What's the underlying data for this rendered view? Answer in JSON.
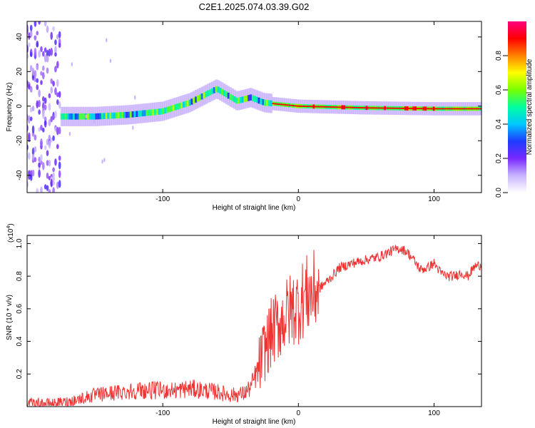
{
  "title": "C2E1.2025.074.03.39.G02",
  "chart_data": [
    {
      "type": "heatmap",
      "name": "spectrogram",
      "xlabel": "Height of straight line (km)",
      "ylabel": "Frequency (Hz)",
      "xlim": [
        -200,
        135
      ],
      "ylim": [
        -50,
        49
      ],
      "xticks": [
        -100,
        0,
        100
      ],
      "yticks": [
        -40,
        -20,
        0,
        20,
        40
      ],
      "colorbar": {
        "label": "Normalized spectral amplitude",
        "range": [
          0,
          1
        ],
        "ticks": [
          "0.0",
          "0.2",
          "0.4",
          "0.6",
          "0.8"
        ],
        "colors": [
          "#ffffff",
          "#c8b4ff",
          "#7828ff",
          "#1e3cff",
          "#00c8ff",
          "#00ffa0",
          "#78ff00",
          "#ffff00",
          "#ff8000",
          "#ff0000",
          "#ff0080"
        ]
      },
      "signal_track": [
        {
          "x": -175,
          "f": -6
        },
        {
          "x": -150,
          "f": -6
        },
        {
          "x": -125,
          "f": -5
        },
        {
          "x": -100,
          "f": -3
        },
        {
          "x": -80,
          "f": 2
        },
        {
          "x": -60,
          "f": 10
        },
        {
          "x": -45,
          "f": 3
        },
        {
          "x": -35,
          "f": 5
        },
        {
          "x": -25,
          "f": 2
        },
        {
          "x": 0,
          "f": 0
        },
        {
          "x": 50,
          "f": -1
        },
        {
          "x": 100,
          "f": -1.5
        },
        {
          "x": 135,
          "f": -1.5
        }
      ]
    },
    {
      "type": "line",
      "name": "snr",
      "xlabel": "Height of straight line (km)",
      "ylabel": "SNR (10 * v/v)",
      "y_scale_label": "(x10",
      "y_scale_exponent": "4",
      "xlim": [
        -200,
        135
      ],
      "ylim": [
        0,
        1.05
      ],
      "xticks": [
        -100,
        0,
        100
      ],
      "yticks": [
        0.2,
        0.4,
        0.6,
        0.8,
        1.0
      ],
      "ytick_labels": [
        "0.2",
        "0.4",
        "0.6",
        "0.8",
        "1.0"
      ],
      "color": "#ee3333",
      "series": {
        "x": [
          -200,
          -180,
          -170,
          -160,
          -150,
          -140,
          -130,
          -120,
          -110,
          -100,
          -90,
          -80,
          -70,
          -60,
          -50,
          -40,
          -35,
          -30,
          -25,
          -20,
          -15,
          -10,
          -5,
          0,
          5,
          10,
          15,
          20,
          25,
          30,
          40,
          50,
          60,
          65,
          70,
          75,
          80,
          85,
          90,
          95,
          100,
          105,
          110,
          115,
          120,
          125,
          130,
          135
        ],
        "y": [
          0.02,
          0.02,
          0.03,
          0.05,
          0.07,
          0.08,
          0.09,
          0.1,
          0.1,
          0.1,
          0.1,
          0.11,
          0.1,
          0.09,
          0.07,
          0.08,
          0.12,
          0.22,
          0.35,
          0.45,
          0.5,
          0.55,
          0.6,
          0.62,
          0.68,
          0.7,
          0.72,
          0.76,
          0.8,
          0.85,
          0.88,
          0.9,
          0.92,
          0.94,
          0.96,
          0.97,
          0.95,
          0.9,
          0.84,
          0.85,
          0.88,
          0.82,
          0.8,
          0.8,
          0.82,
          0.8,
          0.86,
          0.87
        ]
      }
    }
  ]
}
